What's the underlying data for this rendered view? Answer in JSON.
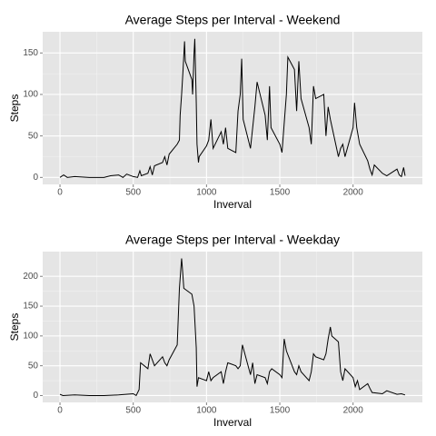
{
  "chart_data": [
    {
      "type": "line",
      "title": "Average Steps per Interval - Weekend",
      "xlabel": "Inverval",
      "ylabel": "Steps",
      "color": "#000000",
      "grid": true,
      "xlim": [
        -118,
        2473
      ],
      "ylim": [
        -8.4,
        175.5
      ],
      "xticks": [
        0,
        500,
        1000,
        1500,
        2000
      ],
      "yticks": [
        0,
        50,
        100,
        150
      ],
      "x": [
        0,
        25,
        50,
        100,
        200,
        300,
        345,
        400,
        430,
        455,
        500,
        530,
        545,
        555,
        600,
        615,
        630,
        645,
        700,
        715,
        730,
        745,
        800,
        815,
        820,
        830,
        840,
        850,
        855,
        900,
        905,
        915,
        920,
        930,
        935,
        945,
        950,
        1000,
        1015,
        1030,
        1045,
        1100,
        1115,
        1130,
        1145,
        1200,
        1215,
        1230,
        1240,
        1250,
        1300,
        1315,
        1330,
        1345,
        1400,
        1415,
        1430,
        1440,
        1500,
        1515,
        1530,
        1545,
        1555,
        1600,
        1615,
        1630,
        1645,
        1700,
        1715,
        1730,
        1745,
        1800,
        1815,
        1830,
        1845,
        1900,
        1915,
        1930,
        1945,
        2000,
        2010,
        2025,
        2045,
        2100,
        2115,
        2130,
        2145,
        2200,
        2230,
        2300,
        2315,
        2330,
        2345,
        2355
      ],
      "values": [
        0,
        3,
        0,
        1,
        0,
        0,
        2,
        3,
        0,
        4,
        1,
        0,
        8,
        2,
        5,
        13,
        3,
        14,
        18,
        25,
        15,
        28,
        40,
        45,
        75,
        100,
        130,
        164,
        140,
        118,
        100,
        150,
        167,
        90,
        40,
        18,
        25,
        38,
        45,
        70,
        35,
        55,
        40,
        60,
        35,
        30,
        80,
        100,
        143,
        70,
        35,
        60,
        85,
        115,
        75,
        45,
        110,
        60,
        40,
        30,
        65,
        100,
        145,
        130,
        80,
        140,
        95,
        60,
        40,
        110,
        95,
        100,
        50,
        85,
        70,
        25,
        35,
        40,
        25,
        60,
        90,
        60,
        40,
        20,
        10,
        3,
        15,
        5,
        2,
        10,
        3,
        1,
        12,
        2
      ]
    },
    {
      "type": "line",
      "title": "Average Steps per Interval - Weekday",
      "xlabel": "Inverval",
      "ylabel": "Steps",
      "color": "#000000",
      "grid": true,
      "xlim": [
        -118,
        2473
      ],
      "ylim": [
        -11.5,
        241.5
      ],
      "xticks": [
        0,
        500,
        1000,
        1500,
        2000
      ],
      "yticks": [
        0,
        50,
        100,
        150,
        200
      ],
      "x": [
        0,
        20,
        100,
        200,
        300,
        400,
        500,
        520,
        540,
        550,
        600,
        615,
        630,
        645,
        700,
        715,
        730,
        745,
        800,
        815,
        830,
        835,
        845,
        900,
        915,
        930,
        935,
        945,
        1000,
        1015,
        1030,
        1045,
        1100,
        1115,
        1130,
        1145,
        1200,
        1215,
        1230,
        1245,
        1300,
        1315,
        1330,
        1345,
        1400,
        1415,
        1430,
        1445,
        1500,
        1515,
        1530,
        1545,
        1600,
        1615,
        1630,
        1645,
        1700,
        1715,
        1730,
        1745,
        1800,
        1815,
        1830,
        1845,
        1855,
        1900,
        1915,
        1930,
        1945,
        2000,
        2015,
        2030,
        2045,
        2100,
        2115,
        2130,
        2200,
        2230,
        2300,
        2330,
        2355
      ],
      "values": [
        2,
        0,
        1,
        0,
        0,
        1,
        3,
        0,
        10,
        55,
        45,
        70,
        60,
        50,
        65,
        55,
        50,
        60,
        85,
        180,
        230,
        215,
        180,
        170,
        150,
        80,
        15,
        30,
        25,
        40,
        25,
        30,
        40,
        20,
        40,
        55,
        50,
        45,
        50,
        85,
        35,
        55,
        20,
        35,
        30,
        20,
        40,
        45,
        35,
        30,
        95,
        75,
        40,
        35,
        50,
        40,
        25,
        40,
        70,
        65,
        60,
        70,
        95,
        115,
        100,
        90,
        40,
        25,
        45,
        30,
        15,
        25,
        10,
        20,
        12,
        5,
        3,
        8,
        2,
        3,
        1
      ]
    }
  ]
}
